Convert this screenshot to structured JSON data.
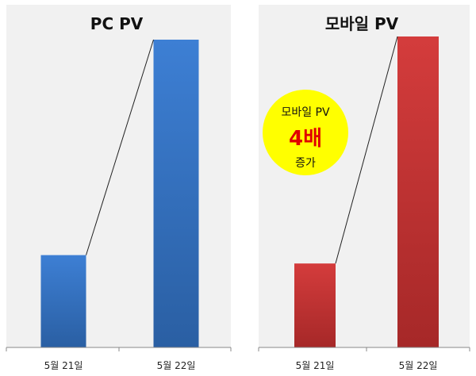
{
  "colors": {
    "panel_bg": "#f1f1f1",
    "pc_bar_top": "#3d7fd4",
    "pc_bar_bottom": "#2a5fa3",
    "mobile_bar_top": "#d43c3c",
    "mobile_bar_bottom": "#a62828",
    "badge_fill": "#ffff00",
    "badge_highlight": "#e00000",
    "connector": "#222222"
  },
  "chart_data": [
    {
      "type": "bar",
      "title": "PC PV",
      "categories": [
        "5월 21일",
        "5월 22일"
      ],
      "values": [
        30,
        100
      ],
      "ylim": [
        0,
        100
      ],
      "grid": false,
      "color": "blue"
    },
    {
      "type": "bar",
      "title": "모바일 PV",
      "categories": [
        "5월 21일",
        "5월 22일"
      ],
      "values": [
        27,
        100
      ],
      "ylim": [
        0,
        100
      ],
      "grid": false,
      "color": "red"
    }
  ],
  "badge": {
    "line1": "모바일 PV",
    "line2": "4배",
    "line3": "증가"
  }
}
